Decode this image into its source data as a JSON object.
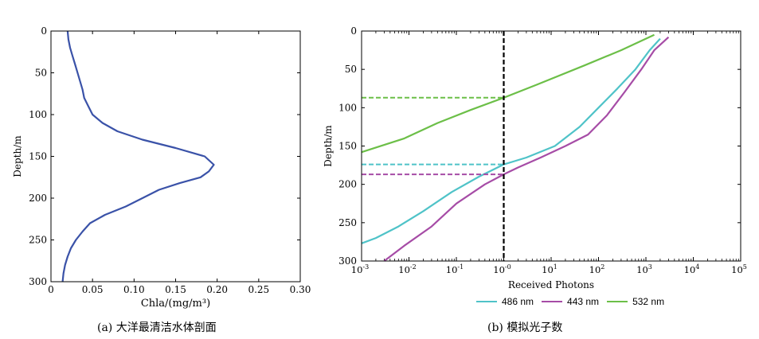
{
  "chart_data": [
    {
      "type": "line",
      "panel": "a",
      "caption": "(a) 大洋最清洁水体剖面",
      "xlabel": "Chla/(mg/m³)",
      "ylabel": "Depth/m",
      "xlim": [
        0,
        0.3
      ],
      "ylim": [
        300,
        0
      ],
      "xticks": [
        "0",
        "0.05",
        "0.10",
        "0.15",
        "0.20",
        "0.25",
        "0.30"
      ],
      "yticks": [
        "0",
        "50",
        "100",
        "150",
        "200",
        "250",
        "300"
      ],
      "color": "#3a52a8",
      "series": [
        {
          "points": [
            [
              0.02,
              0
            ],
            [
              0.021,
              10
            ],
            [
              0.023,
              20
            ],
            [
              0.026,
              30
            ],
            [
              0.029,
              40
            ],
            [
              0.032,
              50
            ],
            [
              0.035,
              60
            ],
            [
              0.038,
              70
            ],
            [
              0.04,
              80
            ],
            [
              0.045,
              90
            ],
            [
              0.05,
              100
            ],
            [
              0.062,
              110
            ],
            [
              0.08,
              120
            ],
            [
              0.11,
              130
            ],
            [
              0.15,
              140
            ],
            [
              0.185,
              150
            ],
            [
              0.196,
              160
            ],
            [
              0.19,
              168
            ],
            [
              0.18,
              175
            ],
            [
              0.155,
              182
            ],
            [
              0.13,
              190
            ],
            [
              0.11,
              200
            ],
            [
              0.09,
              210
            ],
            [
              0.065,
              220
            ],
            [
              0.047,
              230
            ],
            [
              0.038,
              240
            ],
            [
              0.03,
              250
            ],
            [
              0.024,
              260
            ],
            [
              0.02,
              270
            ],
            [
              0.017,
              280
            ],
            [
              0.015,
              290
            ],
            [
              0.014,
              300
            ]
          ]
        }
      ]
    },
    {
      "type": "line",
      "panel": "b",
      "caption": "(b) 模拟光子数",
      "xlabel": "Received Photons",
      "ylabel": "Depth/m",
      "xscale": "log",
      "xlim": [
        0.001,
        100000
      ],
      "ylim": [
        300,
        0
      ],
      "xticks": [
        {
          "base": "10",
          "exp": "-3"
        },
        {
          "base": "10",
          "exp": "-2"
        },
        {
          "base": "10",
          "exp": "-1"
        },
        {
          "base": "10",
          "exp": "-0"
        },
        {
          "base": "10",
          "exp": "1"
        },
        {
          "base": "10",
          "exp": "2"
        },
        {
          "base": "10",
          "exp": "3"
        },
        {
          "base": "10",
          "exp": "4"
        },
        {
          "base": "10",
          "exp": "5"
        }
      ],
      "yticks": [
        "0",
        "50",
        "100",
        "150",
        "200",
        "250",
        "300"
      ],
      "threshold_x": 1,
      "legend": [
        {
          "label": "486 nm",
          "color": "#4fc3c8"
        },
        {
          "label": "443 nm",
          "color": "#a64ca6"
        },
        {
          "label": "532 nm",
          "color": "#6cbf48"
        }
      ],
      "series": [
        {
          "name": "486 nm",
          "color": "#4fc3c8",
          "threshold_depth": 174,
          "points": [
            [
              2000,
              10
            ],
            [
              1200,
              25
            ],
            [
              600,
              50
            ],
            [
              250,
              75
            ],
            [
              100,
              100
            ],
            [
              40,
              125
            ],
            [
              12,
              150
            ],
            [
              3,
              165
            ],
            [
              1,
              174
            ],
            [
              0.3,
              190
            ],
            [
              0.08,
              210
            ],
            [
              0.02,
              235
            ],
            [
              0.006,
              255
            ],
            [
              0.002,
              270
            ],
            [
              0.001,
              277
            ]
          ]
        },
        {
          "name": "443 nm",
          "color": "#a64ca6",
          "threshold_depth": 187,
          "points": [
            [
              3000,
              8
            ],
            [
              1500,
              25
            ],
            [
              800,
              50
            ],
            [
              350,
              80
            ],
            [
              150,
              110
            ],
            [
              60,
              135
            ],
            [
              20,
              150
            ],
            [
              6,
              165
            ],
            [
              2,
              178
            ],
            [
              1,
              187
            ],
            [
              0.4,
              200
            ],
            [
              0.1,
              225
            ],
            [
              0.03,
              255
            ],
            [
              0.008,
              280
            ],
            [
              0.003,
              300
            ]
          ]
        },
        {
          "name": "532 nm",
          "color": "#6cbf48",
          "threshold_depth": 87,
          "points": [
            [
              1500,
              5
            ],
            [
              300,
              25
            ],
            [
              50,
              45
            ],
            [
              5,
              70
            ],
            [
              1,
              87
            ],
            [
              0.2,
              103
            ],
            [
              0.04,
              120
            ],
            [
              0.008,
              140
            ],
            [
              0.001,
              158
            ]
          ]
        }
      ]
    }
  ]
}
